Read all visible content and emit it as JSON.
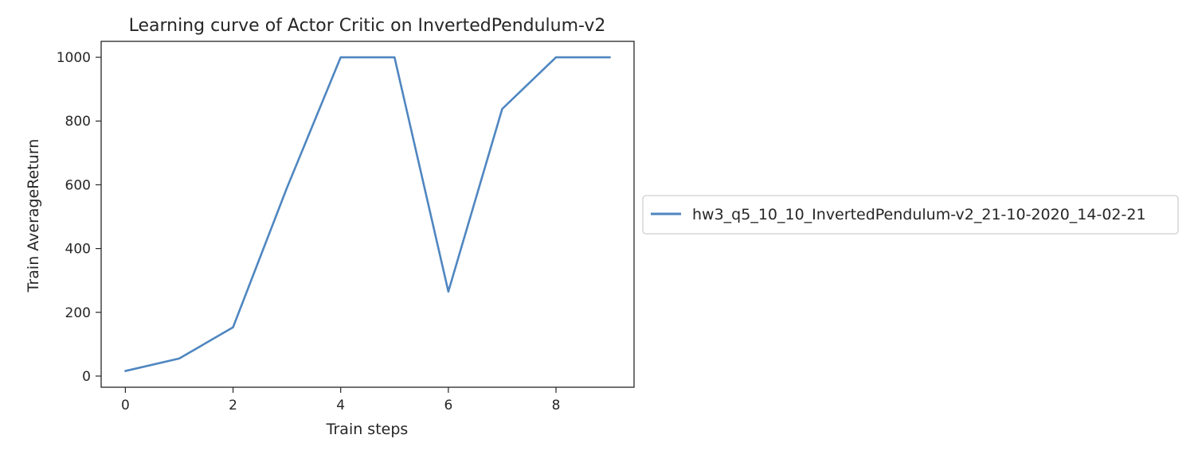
{
  "chart_data": {
    "type": "line",
    "title": "Learning curve of Actor Critic on InvertedPendulum-v2",
    "xlabel": "Train steps",
    "ylabel": "Train AverageReturn",
    "x": [
      0,
      1,
      2,
      3,
      4,
      5,
      6,
      7,
      8,
      9
    ],
    "series": [
      {
        "name": "hw3_q5_10_10_InvertedPendulum-v2_21-10-2020_14-02-21",
        "color": "#4f86c0",
        "values": [
          16,
          55,
          153,
          590,
          1000,
          1000,
          265,
          838,
          1000,
          1000
        ]
      }
    ],
    "xlim": [
      -0.45,
      9.45
    ],
    "ylim": [
      -35,
      1050
    ],
    "xticks": [
      0,
      2,
      4,
      6,
      8
    ],
    "yticks": [
      0,
      200,
      400,
      600,
      800,
      1000
    ],
    "grid": false,
    "legend_placement": "center-left outside right"
  }
}
